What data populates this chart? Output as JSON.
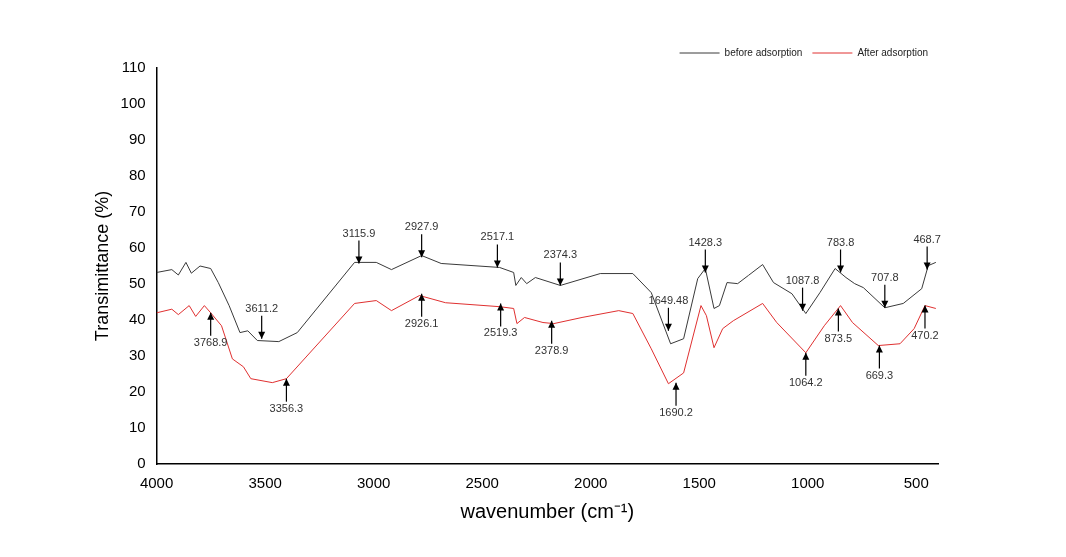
{
  "chart_data": {
    "type": "line",
    "xlabel": "wavenumber (cm⁻¹)",
    "ylabel": "Transimittance (%)",
    "xlim": [
      4000,
      400
    ],
    "xticks": [
      4000,
      3500,
      3000,
      2500,
      2000,
      1500,
      1000,
      500
    ],
    "ylim": [
      0,
      110
    ],
    "yticks": [
      0,
      10,
      20,
      30,
      40,
      50,
      60,
      70,
      80,
      90,
      100,
      110
    ],
    "grid": false,
    "legend": "top right",
    "marker": "none",
    "line_style": "solid",
    "series": [
      {
        "name": "before adsorption",
        "color": "#3a3a3a",
        "x": [
          4000,
          3930,
          3900,
          3865,
          3840,
          3800,
          3751,
          3716,
          3666,
          3616,
          3580,
          3536,
          3437,
          3352,
          3088,
          2988,
          2918,
          2779,
          2689,
          2420,
          2355,
          2345,
          2320,
          2295,
          2255,
          2140,
          1956,
          1806,
          1721,
          1632,
          1572,
          1507,
          1472,
          1432,
          1407,
          1372,
          1323,
          1273,
          1208,
          1158,
          1073,
          1009,
          944,
          874,
          824,
          784,
          744,
          645,
          560,
          475,
          445,
          410
        ],
        "values": [
          53.2,
          54,
          52.5,
          56,
          53,
          55,
          54.3,
          50.4,
          44,
          36.5,
          37,
          34.3,
          34,
          36.5,
          56,
          56,
          54,
          57.9,
          55.7,
          54.6,
          53.2,
          49.6,
          51.8,
          50.1,
          51.8,
          49.6,
          52.9,
          52.9,
          47.6,
          33.4,
          34.8,
          51.5,
          54.3,
          43.2,
          44,
          50.4,
          50.1,
          52.4,
          55.4,
          50.4,
          47.3,
          41.8,
          47.6,
          54.3,
          51.8,
          50.1,
          49,
          43.4,
          44.6,
          48.7,
          55.1,
          56
        ]
      },
      {
        "name": "After adsorption",
        "color": "#e03030",
        "x": [
          4000,
          3930,
          3900,
          3850,
          3820,
          3780,
          3751,
          3701,
          3651,
          3600,
          3566,
          3467,
          3402,
          3088,
          2988,
          2918,
          2789,
          2669,
          2420,
          2355,
          2340,
          2305,
          2220,
          2170,
          2040,
          1871,
          1806,
          1721,
          1642,
          1572,
          1492,
          1467,
          1432,
          1392,
          1343,
          1208,
          1143,
          1009,
          924,
          849,
          794,
          675,
          575,
          510,
          460,
          410
        ],
        "values": [
          42,
          43,
          41.5,
          44,
          41,
          44,
          42,
          38.4,
          29.2,
          27,
          23.7,
          22.6,
          23.7,
          44.6,
          45.4,
          42.6,
          46.8,
          44.8,
          43.7,
          43.2,
          39,
          40.7,
          39.3,
          39,
          40.7,
          42.6,
          41.8,
          32,
          22.3,
          25.3,
          44,
          41.2,
          32.3,
          37.6,
          39.8,
          44.6,
          39.3,
          30.9,
          38.4,
          44,
          39.3,
          32.9,
          33.4,
          37.6,
          44,
          43.2
        ]
      }
    ],
    "annotations": [
      {
        "text": "3611.2",
        "x": 3516,
        "y": 34.8
      },
      {
        "text": "3115.9",
        "x": 3068,
        "y": 55.7
      },
      {
        "text": "2927.9",
        "x": 2779,
        "y": 57.4
      },
      {
        "text": "2517.1",
        "x": 2430,
        "y": 54.6
      },
      {
        "text": "2374.3",
        "x": 2140,
        "y": 49.6
      },
      {
        "text": "1649.48",
        "x": 1642,
        "y": 37
      },
      {
        "text": "1428.3",
        "x": 1472,
        "y": 53.2
      },
      {
        "text": "1087.8",
        "x": 1024,
        "y": 42.6
      },
      {
        "text": "783.8",
        "x": 849,
        "y": 53.2
      },
      {
        "text": "707.8",
        "x": 645,
        "y": 43.4
      },
      {
        "text": "468.7",
        "x": 450,
        "y": 54
      },
      {
        "text": "3768.9",
        "x": 3751,
        "y": 42
      },
      {
        "text": "3356.3",
        "x": 3402,
        "y": 23.7
      },
      {
        "text": "2926.1",
        "x": 2779,
        "y": 47.3
      },
      {
        "text": "2519.3",
        "x": 2415,
        "y": 44.6
      },
      {
        "text": "2378.9",
        "x": 2180,
        "y": 39.8
      },
      {
        "text": "1690.2",
        "x": 1607,
        "y": 22.6
      },
      {
        "text": "1064.2",
        "x": 1009,
        "y": 30.9
      },
      {
        "text": "873.5",
        "x": 859,
        "y": 43.2
      },
      {
        "text": "669.3",
        "x": 670,
        "y": 32.9
      },
      {
        "text": "470.2",
        "x": 460,
        "y": 44
      }
    ]
  }
}
